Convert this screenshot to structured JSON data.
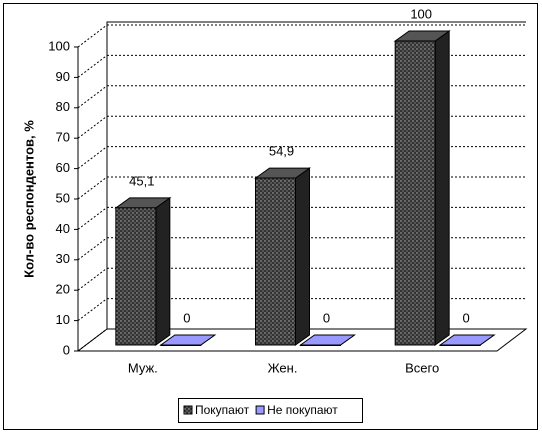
{
  "chart_data": {
    "type": "bar3d",
    "y_label": "Кол-во респондентов, %",
    "categories": [
      "Муж.",
      "Жен.",
      "Всего"
    ],
    "series": [
      {
        "name": "Покупают",
        "color": "#333333",
        "values": [
          45.1,
          54.9,
          100
        ],
        "value_labels": [
          "45,1",
          "54,9",
          "100"
        ]
      },
      {
        "name": "Не покупают",
        "color": "#9999ff",
        "values": [
          0,
          0,
          0
        ]
      }
    ],
    "ylim": [
      0,
      100
    ],
    "yticks": [
      0,
      10,
      20,
      30,
      40,
      50,
      60,
      70,
      80,
      90,
      100
    ],
    "grid": true,
    "legend": "bottom"
  }
}
